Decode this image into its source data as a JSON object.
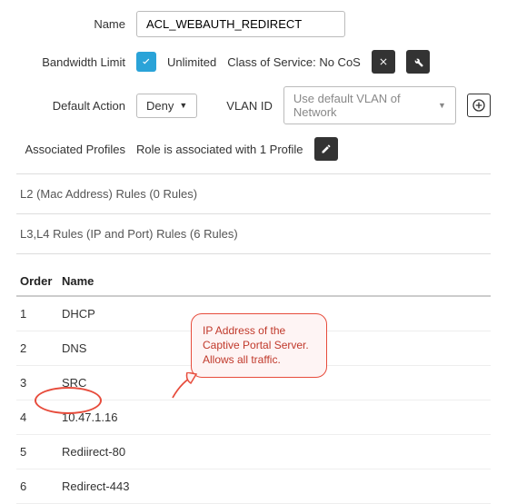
{
  "form": {
    "name_label": "Name",
    "name_value": "ACL_WEBAUTH_REDIRECT",
    "bandwidth_label": "Bandwidth Limit",
    "unlimited_text": "Unlimited",
    "cos_text": "Class of Service: No CoS",
    "default_action_label": "Default Action",
    "default_action_value": "Deny",
    "vlan_label": "VLAN ID",
    "vlan_placeholder": "Use default VLAN of Network",
    "assoc_label": "Associated Profiles",
    "assoc_text": "Role is associated with 1 Profile"
  },
  "sections": {
    "l2_title": "L2 (Mac Address) Rules (0 Rules)",
    "l3l4_title": "L3,L4 Rules (IP and Port) Rules (6 Rules)"
  },
  "table": {
    "col_order": "Order",
    "col_name": "Name",
    "rows": [
      {
        "order": "1",
        "name": "DHCP"
      },
      {
        "order": "2",
        "name": "DNS"
      },
      {
        "order": "3",
        "name": "SRC"
      },
      {
        "order": "4",
        "name": "10.47.1.16"
      },
      {
        "order": "5",
        "name": "Rediirect-80"
      },
      {
        "order": "6",
        "name": "Redirect-443"
      }
    ]
  },
  "callout": {
    "text": "IP Address of the Captive Portal Server. Allows all traffic."
  },
  "colors": {
    "accent": "#2aa3d8",
    "highlight": "#e74c3c"
  }
}
